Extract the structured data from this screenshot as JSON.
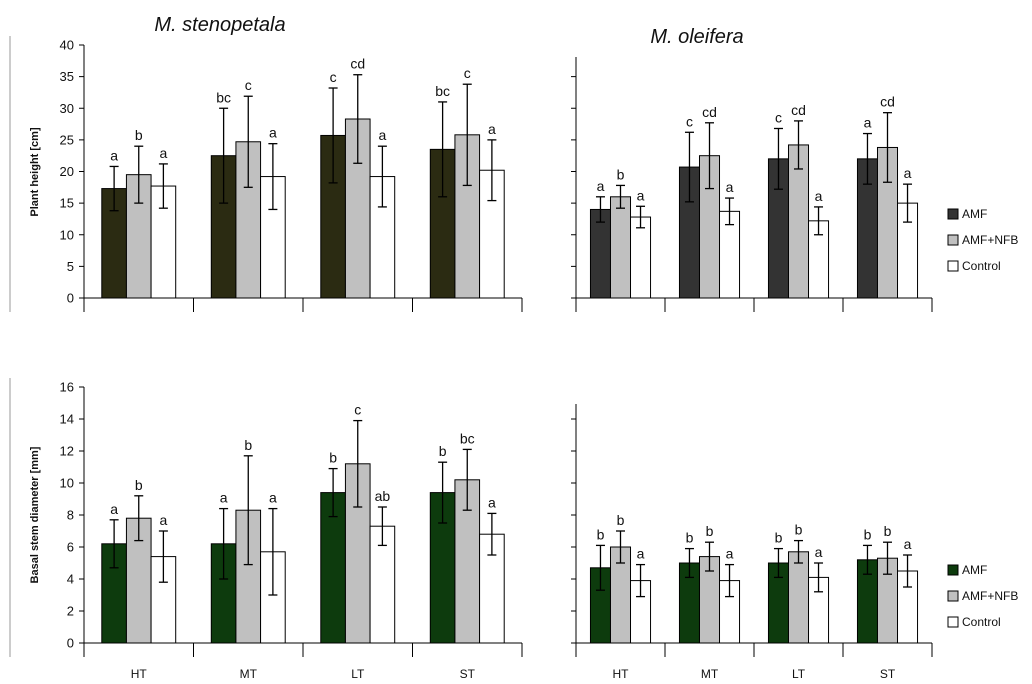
{
  "chart_data": [
    {
      "type": "bar",
      "panel": "top-left",
      "title": "M. stenopetala",
      "ylabel": "Plant height [cm]",
      "ylim": [
        0,
        40
      ],
      "yticks": [
        0,
        5,
        10,
        15,
        20,
        25,
        30,
        35,
        40
      ],
      "categories": [
        "HT",
        "MT",
        "LT",
        "ST"
      ],
      "series": [
        {
          "name": "AMF",
          "color": "#2b2b12",
          "values": [
            17.3,
            22.5,
            25.7,
            23.5
          ],
          "errors": [
            3.5,
            7.5,
            7.5,
            7.5
          ],
          "letters": [
            "a",
            "bc",
            "c",
            "bc"
          ]
        },
        {
          "name": "AMF+NFB",
          "color": "#c0c0c0",
          "values": [
            19.5,
            24.7,
            28.3,
            25.8
          ],
          "errors": [
            4.5,
            7.2,
            7.0,
            8.0
          ],
          "letters": [
            "b",
            "c",
            "cd",
            "c"
          ]
        },
        {
          "name": "Control",
          "color": "#ffffff",
          "values": [
            17.7,
            19.2,
            19.2,
            20.2
          ],
          "errors": [
            3.5,
            5.2,
            4.8,
            4.8
          ],
          "letters": [
            "a",
            "a",
            "a",
            "a"
          ]
        }
      ]
    },
    {
      "type": "bar",
      "panel": "top-right",
      "title": "M. oleifera",
      "ylim": [
        0,
        40
      ],
      "categories": [
        "HT",
        "MT",
        "LT",
        "ST"
      ],
      "series": [
        {
          "name": "AMF",
          "color": "#333333",
          "values": [
            14.0,
            20.7,
            22.0,
            22.0
          ],
          "errors": [
            2.0,
            5.5,
            4.8,
            4.0
          ],
          "letters": [
            "a",
            "c",
            "c",
            "a"
          ]
        },
        {
          "name": "AMF+NFB",
          "color": "#c0c0c0",
          "values": [
            16.0,
            22.5,
            24.2,
            23.8
          ],
          "errors": [
            1.8,
            5.2,
            3.8,
            5.5
          ],
          "letters": [
            "b",
            "cd",
            "cd",
            "cd"
          ]
        },
        {
          "name": "Control",
          "color": "#ffffff",
          "values": [
            12.8,
            13.7,
            12.2,
            15.0
          ],
          "errors": [
            1.7,
            2.1,
            2.2,
            3.0
          ],
          "letters": [
            "a",
            "a",
            "a",
            "a"
          ]
        }
      ],
      "legend": [
        "AMF",
        "AMF+NFB",
        "Control"
      ]
    },
    {
      "type": "bar",
      "panel": "bottom-left",
      "ylabel": "Basal stem diameter [mm]",
      "ylim": [
        0,
        16
      ],
      "yticks": [
        0,
        2,
        4,
        6,
        8,
        10,
        12,
        14,
        16
      ],
      "categories": [
        "HT",
        "MT",
        "LT",
        "ST"
      ],
      "series": [
        {
          "name": "AMF",
          "color": "#0d3b0d",
          "values": [
            6.2,
            6.2,
            9.4,
            9.4
          ],
          "errors": [
            1.5,
            2.2,
            1.5,
            1.9
          ],
          "letters": [
            "a",
            "a",
            "b",
            "b"
          ]
        },
        {
          "name": "AMF+NFB",
          "color": "#c0c0c0",
          "values": [
            7.8,
            8.3,
            11.2,
            10.2
          ],
          "errors": [
            1.4,
            3.4,
            2.7,
            1.9
          ],
          "letters": [
            "b",
            "b",
            "c",
            "bc"
          ]
        },
        {
          "name": "Control",
          "color": "#ffffff",
          "values": [
            5.4,
            5.7,
            7.3,
            6.8
          ],
          "errors": [
            1.6,
            2.7,
            1.2,
            1.3
          ],
          "letters": [
            "a",
            "a",
            "ab",
            "a"
          ]
        }
      ]
    },
    {
      "type": "bar",
      "panel": "bottom-right",
      "ylim": [
        0,
        16
      ],
      "categories": [
        "HT",
        "MT",
        "LT",
        "ST"
      ],
      "series": [
        {
          "name": "AMF",
          "color": "#0d3b0d",
          "values": [
            4.7,
            5.0,
            5.0,
            5.2
          ],
          "errors": [
            1.4,
            0.9,
            0.9,
            0.9
          ],
          "letters": [
            "b",
            "b",
            "b",
            "b"
          ]
        },
        {
          "name": "AMF+NFB",
          "color": "#c0c0c0",
          "values": [
            6.0,
            5.4,
            5.7,
            5.3
          ],
          "errors": [
            1.0,
            0.9,
            0.7,
            1.0
          ],
          "letters": [
            "b",
            "b",
            "b",
            "b"
          ]
        },
        {
          "name": "Control",
          "color": "#ffffff",
          "values": [
            3.9,
            3.9,
            4.1,
            4.5
          ],
          "errors": [
            1.0,
            1.0,
            0.9,
            1.0
          ],
          "letters": [
            "a",
            "a",
            "a",
            "a"
          ]
        }
      ],
      "legend": [
        "AMF",
        "AMF+NFB",
        "Control"
      ]
    }
  ]
}
